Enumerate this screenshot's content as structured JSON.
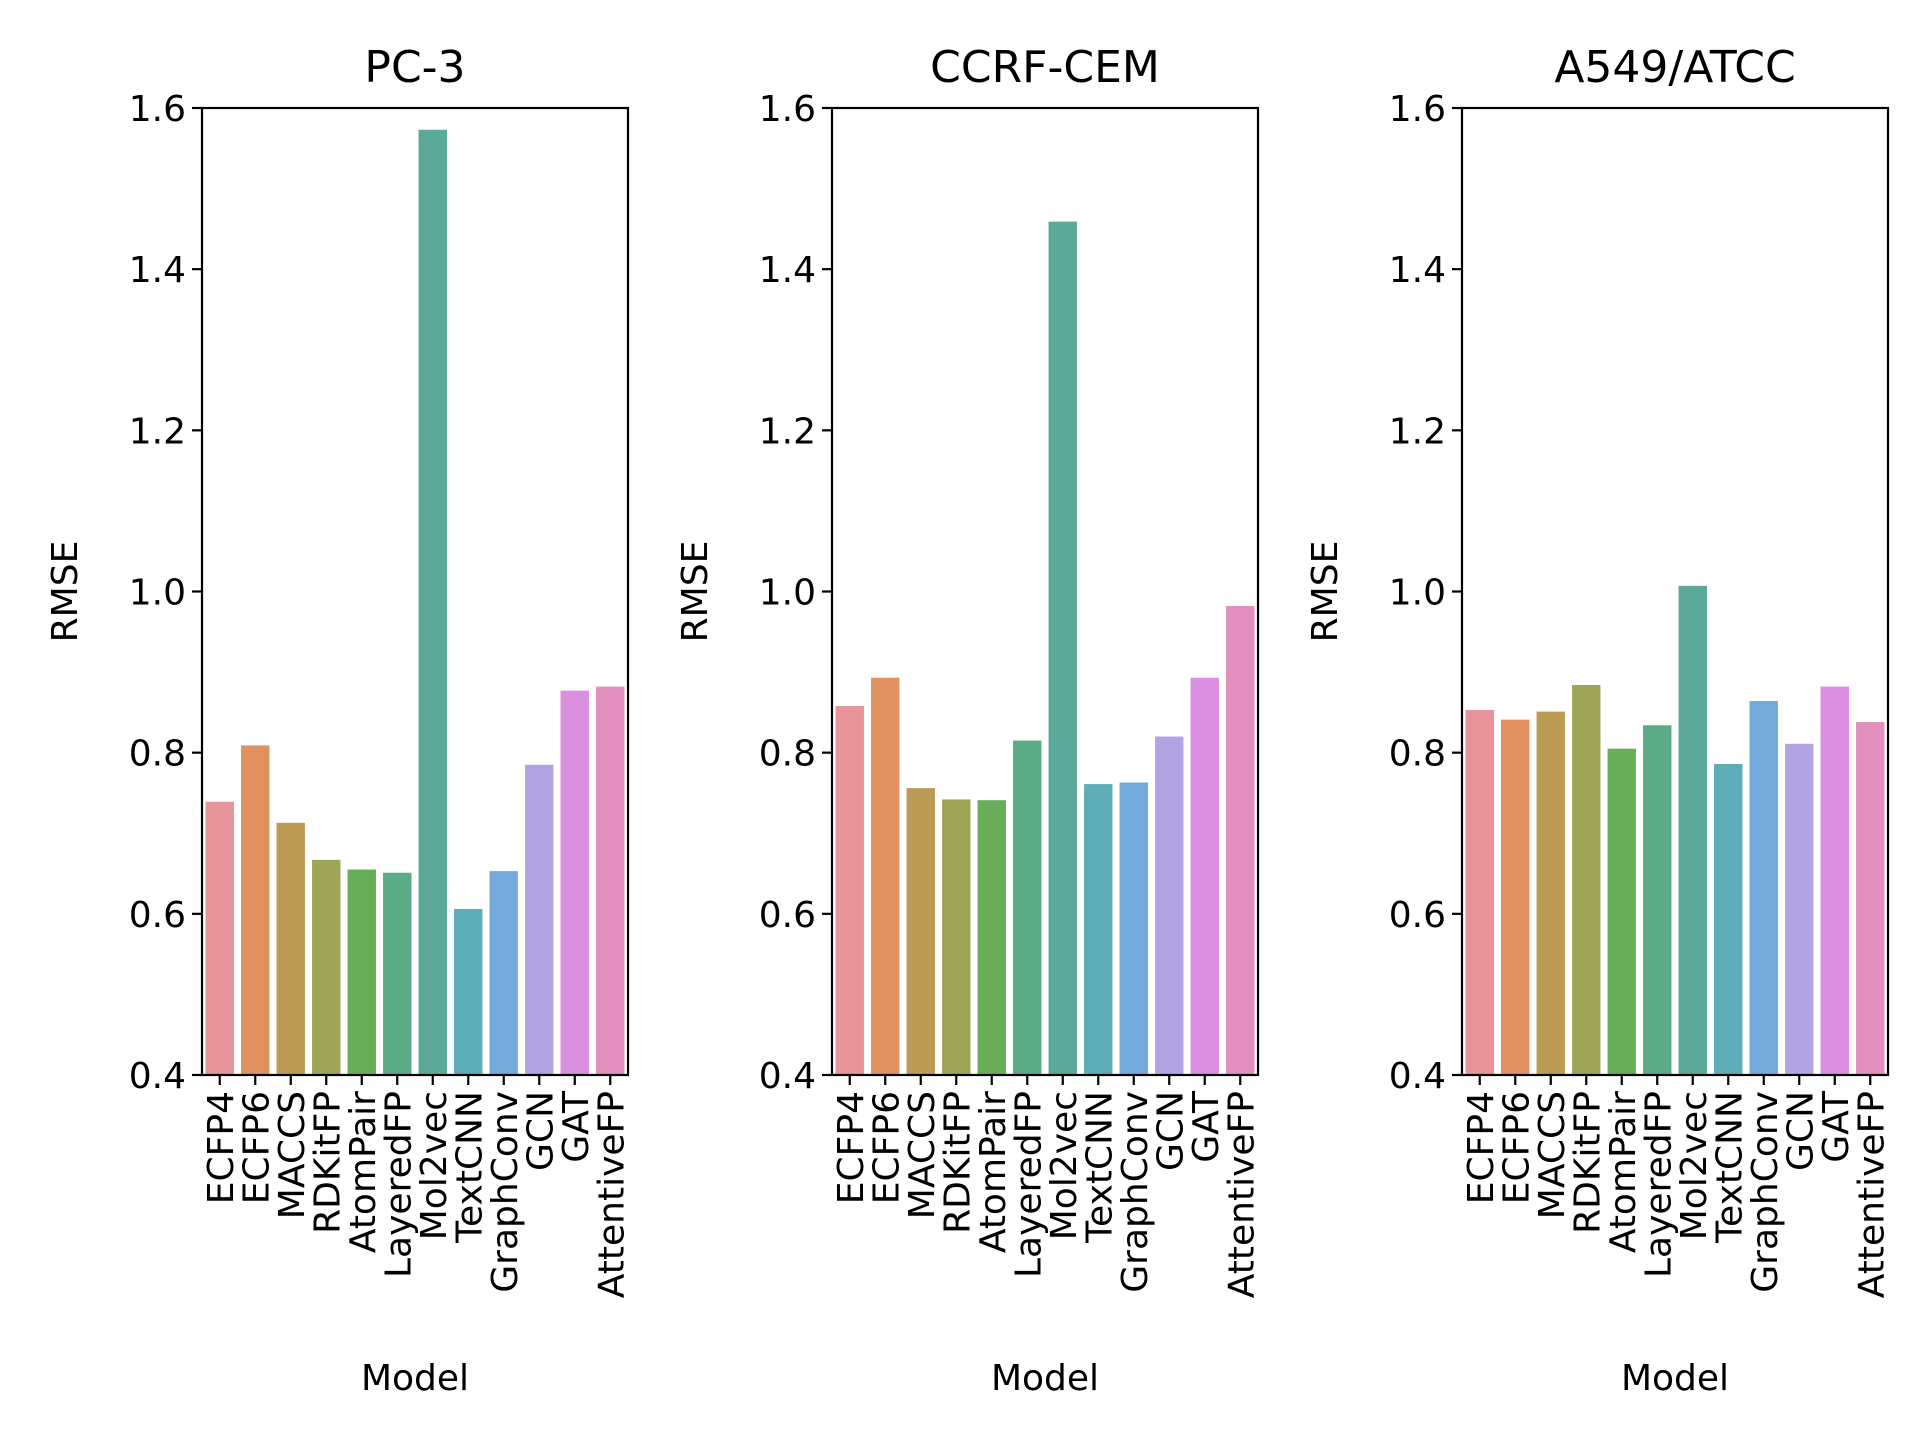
{
  "chart_data": [
    {
      "type": "bar",
      "title": "PC-3",
      "xlabel": "Model",
      "ylabel": "RMSE",
      "ylim": [
        0.4,
        1.6
      ],
      "yticks": [
        "0.4",
        "0.6",
        "0.8",
        "1.0",
        "1.2",
        "1.4",
        "1.6"
      ],
      "categories": [
        "ECFP4",
        "ECFP6",
        "MACCS",
        "RDKitFP",
        "AtomPair",
        "LayeredFP",
        "Mol2vec",
        "TextCNN",
        "GraphConv",
        "GCN",
        "GAT",
        "AttentiveFP"
      ],
      "values": [
        0.739,
        0.809,
        0.713,
        0.667,
        0.655,
        0.651,
        1.573,
        0.606,
        0.653,
        0.785,
        0.877,
        0.882
      ],
      "grid": false,
      "legend": "none"
    },
    {
      "type": "bar",
      "title": "CCRF-CEM",
      "xlabel": "Model",
      "ylabel": "RMSE",
      "ylim": [
        0.4,
        1.6
      ],
      "yticks": [
        "0.4",
        "0.6",
        "0.8",
        "1.0",
        "1.2",
        "1.4",
        "1.6"
      ],
      "categories": [
        "ECFP4",
        "ECFP6",
        "MACCS",
        "RDKitFP",
        "AtomPair",
        "LayeredFP",
        "Mol2vec",
        "TextCNN",
        "GraphConv",
        "GCN",
        "GAT",
        "AttentiveFP"
      ],
      "values": [
        0.858,
        0.893,
        0.756,
        0.742,
        0.741,
        0.815,
        1.459,
        0.761,
        0.763,
        0.82,
        0.893,
        0.982
      ],
      "grid": false,
      "legend": "none"
    },
    {
      "type": "bar",
      "title": "A549/ATCC",
      "xlabel": "Model",
      "ylabel": "RMSE",
      "ylim": [
        0.4,
        1.6
      ],
      "yticks": [
        "0.4",
        "0.6",
        "0.8",
        "1.0",
        "1.2",
        "1.4",
        "1.6"
      ],
      "categories": [
        "ECFP4",
        "ECFP6",
        "MACCS",
        "RDKitFP",
        "AtomPair",
        "LayeredFP",
        "Mol2vec",
        "TextCNN",
        "GraphConv",
        "GCN",
        "GAT",
        "AttentiveFP"
      ],
      "values": [
        0.853,
        0.841,
        0.851,
        0.884,
        0.805,
        0.834,
        1.007,
        0.786,
        0.864,
        0.811,
        0.882,
        0.838
      ],
      "grid": false,
      "legend": "none"
    }
  ],
  "colors": [
    "#e8939a",
    "#e0915f",
    "#bc9b55",
    "#9ea557",
    "#68ad58",
    "#5aab86",
    "#5aa99b",
    "#5daeb8",
    "#73aadb",
    "#b2a4e2",
    "#db8fe0",
    "#e38fbd"
  ]
}
